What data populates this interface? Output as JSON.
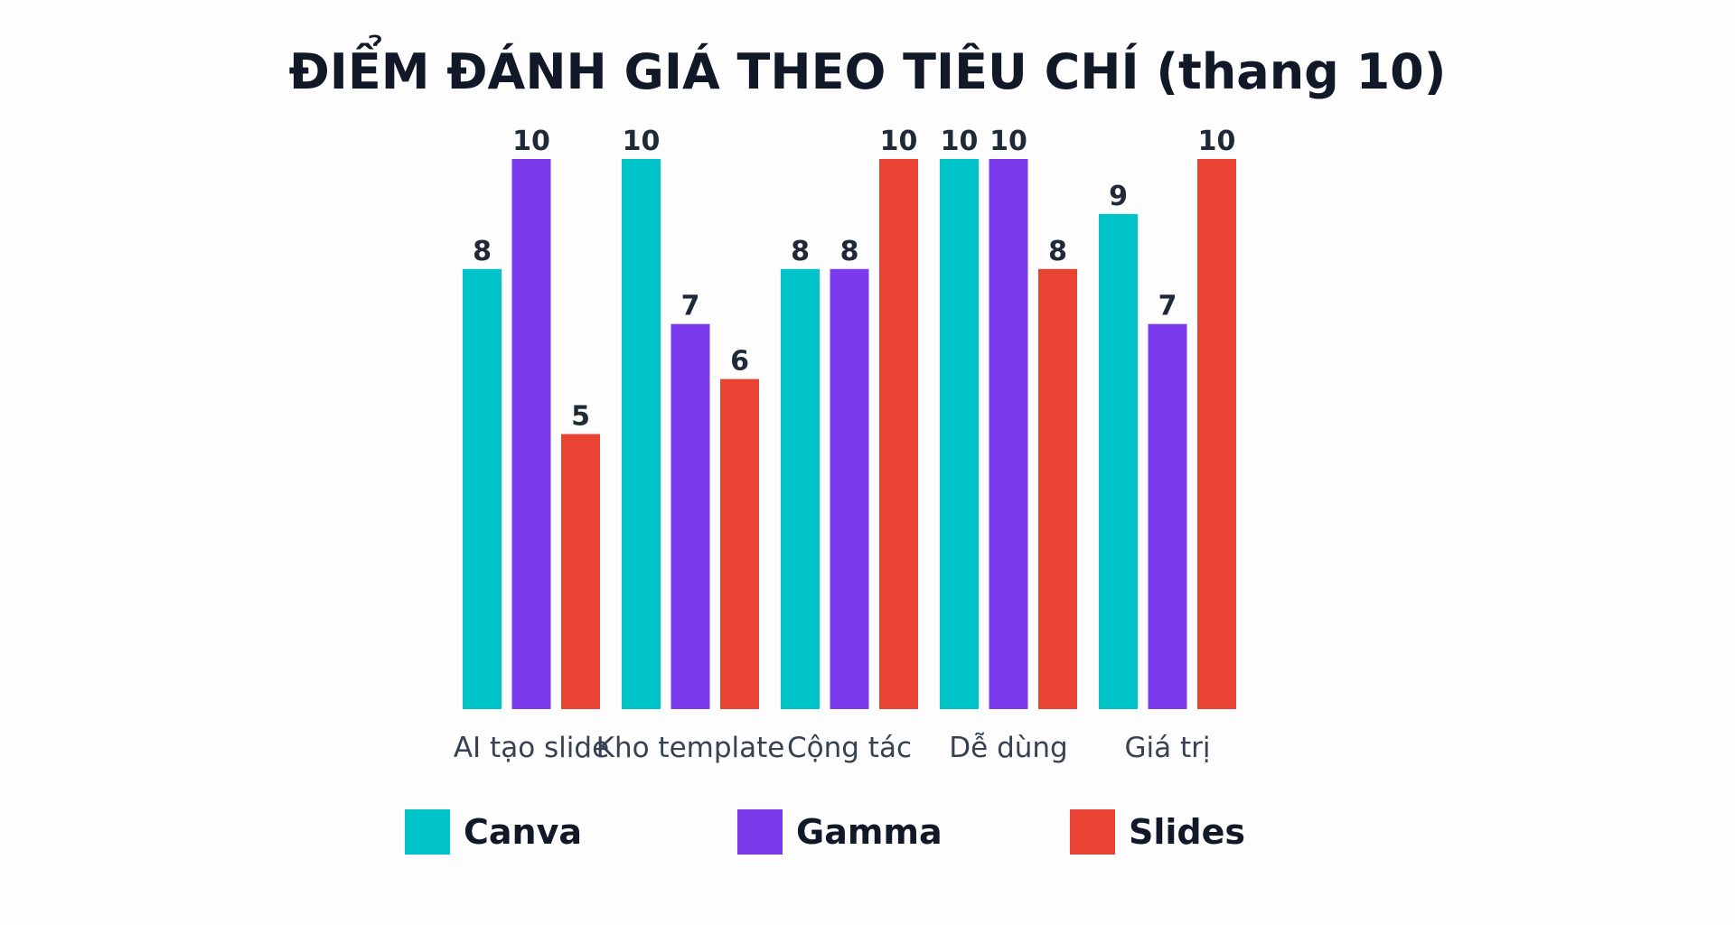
{
  "chart_data": {
    "type": "bar",
    "title": "ĐIỂM ĐÁNH GIÁ THEO TIÊU CHÍ (thang 10)",
    "xlabel": "",
    "ylabel": "",
    "ylim": [
      0,
      10
    ],
    "grid": false,
    "legend_position": "bottom",
    "categories": [
      "AI tạo slide",
      "Kho template",
      "Cộng tác",
      "Dễ dùng",
      "Giá trị"
    ],
    "series": [
      {
        "name": "Canva",
        "color": "#00c4c8",
        "values": [
          8,
          10,
          8,
          10,
          9
        ]
      },
      {
        "name": "Gamma",
        "color": "#7c3aed",
        "values": [
          10,
          7,
          8,
          10,
          7
        ]
      },
      {
        "name": "Slides",
        "color": "#e94335",
        "values": [
          5,
          6,
          10,
          8,
          10
        ]
      }
    ]
  }
}
